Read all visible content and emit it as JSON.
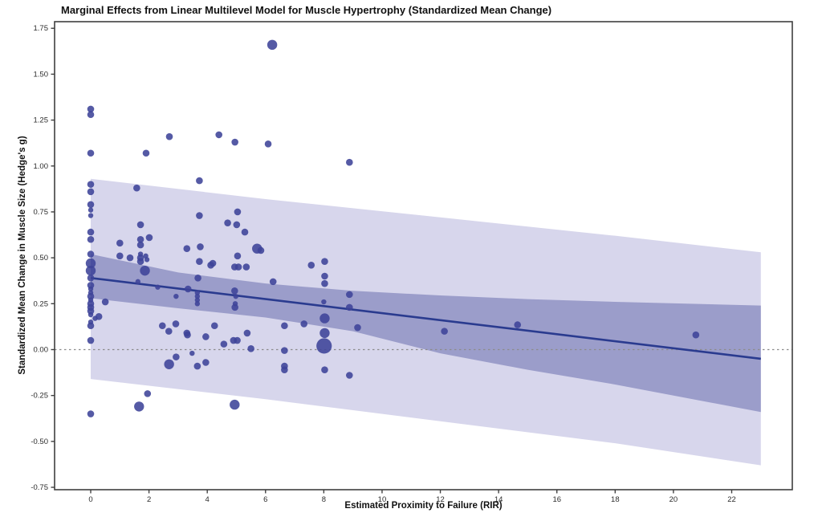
{
  "title": "Marginal Effects from Linear Multilevel Model for Muscle Hypertrophy (Standardized Mean Change)",
  "chart_data": {
    "type": "scatter",
    "title": "Marginal Effects from Linear Multilevel Model for Muscle Hypertrophy (Standardized Mean Change)",
    "xlabel": "Estimated Proximity to Failure (RIR)",
    "ylabel": "Standardized Mean Change in Muscle Size (Hedge's g)",
    "xlim": [
      -1.24,
      24.08
    ],
    "ylim": [
      -0.763,
      1.786
    ],
    "x_ticks": [
      0,
      2,
      4,
      6,
      8,
      10,
      12,
      14,
      16,
      18,
      20,
      22
    ],
    "y_ticks": [
      1.75,
      1.5,
      1.25,
      1.0,
      0.75,
      0.5,
      0.25,
      0.0,
      -0.25,
      -0.5,
      -0.75
    ],
    "grid": false,
    "legend": null,
    "zero_reference_line": 0.0,
    "regression_line": {
      "x": [
        0,
        23
      ],
      "y": [
        0.39,
        -0.05
      ]
    },
    "inner_ci_band": {
      "x": [
        0,
        3,
        6,
        9,
        12,
        15,
        18,
        23
      ],
      "upper": [
        0.52,
        0.42,
        0.36,
        0.32,
        0.295,
        0.275,
        0.26,
        0.24
      ],
      "lower": [
        0.28,
        0.225,
        0.175,
        0.1,
        -0.02,
        -0.11,
        -0.19,
        -0.34
      ]
    },
    "outer_pi_band": {
      "x": [
        0,
        6,
        12,
        18,
        23
      ],
      "upper": [
        0.93,
        0.82,
        0.72,
        0.62,
        0.53
      ],
      "lower": [
        -0.16,
        -0.27,
        -0.39,
        -0.51,
        -0.63
      ]
    },
    "point_size_radius": {
      "1": 3.2,
      "2": 4.3,
      "3": 6.2,
      "4": 9.6
    },
    "points": [
      [
        0,
        1.31,
        2
      ],
      [
        0,
        1.28,
        2
      ],
      [
        0,
        1.07,
        2
      ],
      [
        0,
        0.9,
        2
      ],
      [
        0,
        0.86,
        2
      ],
      [
        0,
        0.79,
        2
      ],
      [
        0,
        0.76,
        1
      ],
      [
        0,
        0.73,
        1
      ],
      [
        0,
        0.64,
        2
      ],
      [
        0,
        0.6,
        2
      ],
      [
        0,
        0.52,
        2
      ],
      [
        0,
        0.47,
        3
      ],
      [
        0,
        0.43,
        3
      ],
      [
        0,
        0.39,
        2
      ],
      [
        0,
        0.35,
        2
      ],
      [
        0,
        0.33,
        1
      ],
      [
        0,
        0.31,
        1
      ],
      [
        0,
        0.29,
        2
      ],
      [
        0,
        0.27,
        1
      ],
      [
        0,
        0.25,
        2
      ],
      [
        0,
        0.23,
        2
      ],
      [
        0,
        0.21,
        2
      ],
      [
        0,
        0.19,
        1
      ],
      [
        0.28,
        0.18,
        2
      ],
      [
        0.15,
        0.17,
        1
      ],
      [
        0,
        0.15,
        1
      ],
      [
        0,
        0.13,
        2
      ],
      [
        0,
        0.05,
        2
      ],
      [
        0.5,
        0.26,
        2
      ],
      [
        0,
        -0.35,
        2
      ],
      [
        1.0,
        0.58,
        2
      ],
      [
        1.0,
        0.51,
        2
      ],
      [
        1.35,
        0.5,
        2
      ],
      [
        1.58,
        0.88,
        2
      ],
      [
        1.71,
        0.68,
        2
      ],
      [
        1.71,
        0.6,
        2
      ],
      [
        2.01,
        0.61,
        2
      ],
      [
        1.71,
        0.57,
        2
      ],
      [
        1.71,
        0.52,
        1
      ],
      [
        1.71,
        0.5,
        2
      ],
      [
        1.89,
        0.51,
        1
      ],
      [
        1.93,
        0.49,
        1
      ],
      [
        1.71,
        0.48,
        2
      ],
      [
        1.86,
        0.43,
        3
      ],
      [
        1.62,
        0.37,
        1
      ],
      [
        1.9,
        1.07,
        2
      ],
      [
        2.7,
        1.16,
        2
      ],
      [
        2.3,
        0.34,
        1
      ],
      [
        2.93,
        0.29,
        1
      ],
      [
        2.46,
        0.13,
        2
      ],
      [
        2.68,
        0.1,
        2
      ],
      [
        2.92,
        0.14,
        2
      ],
      [
        3.3,
        0.09,
        2
      ],
      [
        2.93,
        -0.04,
        2
      ],
      [
        2.69,
        -0.08,
        3
      ],
      [
        1.95,
        -0.24,
        2
      ],
      [
        1.66,
        -0.31,
        3
      ],
      [
        3.73,
        0.92,
        2
      ],
      [
        3.73,
        0.73,
        2
      ],
      [
        5.04,
        0.75,
        2
      ],
      [
        4.7,
        0.69,
        2
      ],
      [
        5.01,
        0.68,
        2
      ],
      [
        5.29,
        0.64,
        2
      ],
      [
        3.3,
        0.55,
        2
      ],
      [
        3.76,
        0.56,
        2
      ],
      [
        5.71,
        0.55,
        3
      ],
      [
        5.84,
        0.54,
        2
      ],
      [
        5.04,
        0.51,
        2
      ],
      [
        3.73,
        0.48,
        2
      ],
      [
        4.19,
        0.47,
        2
      ],
      [
        5.34,
        0.45,
        2
      ],
      [
        4.12,
        0.46,
        2
      ],
      [
        4.94,
        0.45,
        2
      ],
      [
        5.07,
        0.45,
        2
      ],
      [
        3.68,
        0.39,
        2
      ],
      [
        6.26,
        0.37,
        2
      ],
      [
        3.34,
        0.33,
        2
      ],
      [
        3.66,
        0.31,
        1
      ],
      [
        3.66,
        0.29,
        1
      ],
      [
        3.66,
        0.27,
        1
      ],
      [
        3.66,
        0.25,
        1
      ],
      [
        4.94,
        0.32,
        2
      ],
      [
        4.98,
        0.29,
        1
      ],
      [
        4.96,
        0.25,
        1
      ],
      [
        4.95,
        0.23,
        2
      ],
      [
        4.25,
        0.13,
        2
      ],
      [
        3.32,
        0.08,
        2
      ],
      [
        3.95,
        0.07,
        2
      ],
      [
        5.37,
        0.09,
        2
      ],
      [
        4.57,
        0.03,
        2
      ],
      [
        4.9,
        0.05,
        2
      ],
      [
        5.03,
        0.05,
        2
      ],
      [
        5.5,
        0.005,
        2
      ],
      [
        3.48,
        -0.02,
        1
      ],
      [
        3.95,
        -0.07,
        2
      ],
      [
        3.66,
        -0.09,
        2
      ],
      [
        4.94,
        -0.3,
        3
      ],
      [
        4.4,
        1.17,
        2
      ],
      [
        4.95,
        1.13,
        2
      ],
      [
        6.09,
        1.12,
        2
      ],
      [
        6.23,
        1.66,
        3
      ],
      [
        6.65,
        0.13,
        2
      ],
      [
        7.32,
        0.14,
        2
      ],
      [
        6.65,
        -0.005,
        2
      ],
      [
        6.65,
        -0.09,
        2
      ],
      [
        6.65,
        -0.11,
        2
      ],
      [
        7.57,
        0.46,
        2
      ],
      [
        8.03,
        0.48,
        2
      ],
      [
        8.03,
        0.4,
        2
      ],
      [
        8.03,
        0.36,
        2
      ],
      [
        8.88,
        0.3,
        2
      ],
      [
        8.0,
        0.26,
        1
      ],
      [
        8.88,
        0.23,
        2
      ],
      [
        8.03,
        0.17,
        3
      ],
      [
        9.16,
        0.12,
        2
      ],
      [
        8.03,
        0.09,
        3
      ],
      [
        8.01,
        0.02,
        4
      ],
      [
        8.03,
        -0.11,
        2
      ],
      [
        8.88,
        -0.14,
        2
      ],
      [
        8.88,
        1.02,
        2
      ],
      [
        12.14,
        0.1,
        2
      ],
      [
        14.65,
        0.135,
        2
      ],
      [
        20.77,
        0.08,
        2
      ]
    ],
    "colors": {
      "point": "#3d4399",
      "line": "#2a3b8f",
      "inner_band": "#9b9dca",
      "outer_band": "#d7d6ec",
      "zero_line": "#8c8c8c",
      "frame": "#3f3f3f",
      "tick_text": "#2b2b2b"
    }
  }
}
